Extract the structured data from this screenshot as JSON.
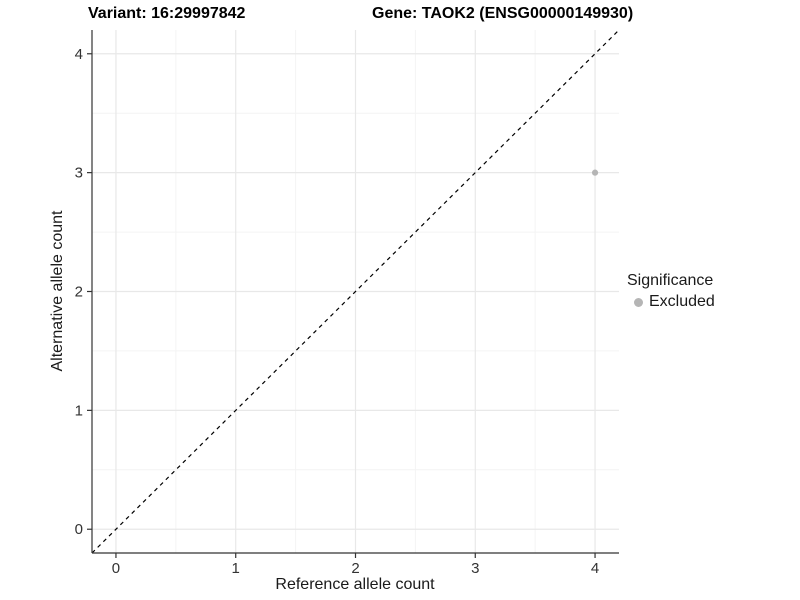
{
  "header": {
    "variant_title": "Variant: 16:29997842",
    "gene_title": "Gene: TAOK2 (ENSG00000149930)"
  },
  "legend": {
    "title": "Significance",
    "items": [
      {
        "label": "Excluded",
        "color": "#b5b5b5"
      }
    ]
  },
  "chart_data": {
    "type": "scatter",
    "title": "Variant: 16:29997842 | Gene: TAOK2 (ENSG00000149930)",
    "xlabel": "Reference allele count",
    "ylabel": "Alternative allele count",
    "xlim": [
      -0.2,
      4.2
    ],
    "ylim": [
      -0.2,
      4.2
    ],
    "x_ticks": [
      0,
      1,
      2,
      3,
      4
    ],
    "y_ticks": [
      0,
      1,
      2,
      3,
      4
    ],
    "x_minor": [
      0.5,
      1.5,
      2.5,
      3.5
    ],
    "y_minor": [
      0.5,
      1.5,
      2.5,
      3.5
    ],
    "grid": "major+minor",
    "legend_position": "right",
    "series": [
      {
        "name": "Excluded",
        "color": "#b5b5b5",
        "points": [
          {
            "x": 4,
            "y": 3
          }
        ]
      }
    ],
    "reference_line": {
      "kind": "identity y=x, corner to corner",
      "style": "dashed",
      "color": "#000000"
    },
    "colors": {
      "grid_major": "#e8e8e8",
      "grid_minor": "#f4f4f4",
      "axis_line": "#333333",
      "tick_text": "#333333",
      "point_excluded": "#b5b5b5",
      "background": "#ffffff"
    }
  }
}
